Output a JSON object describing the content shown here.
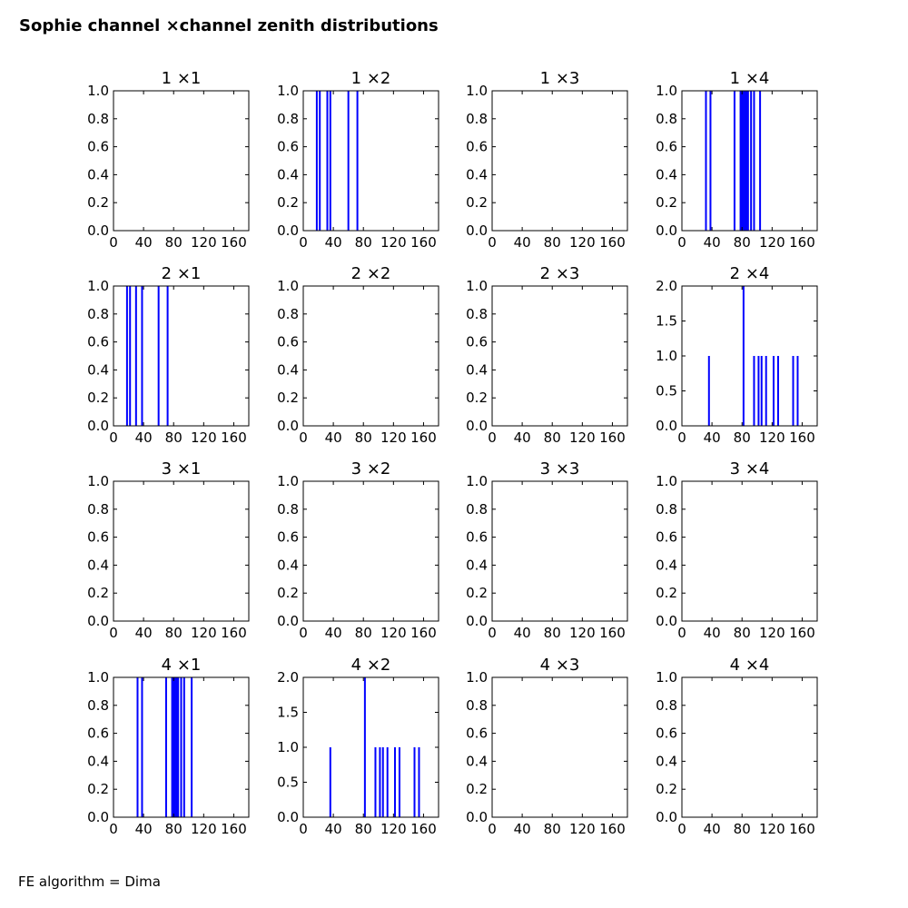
{
  "figure": {
    "title": "Sophie channel ×channel zenith distributions",
    "footer": "FE algorithm = Dima"
  },
  "chart_data": [
    {
      "type": "bar",
      "title": "1 ×1",
      "xlim": [
        0,
        180
      ],
      "ylim": [
        0,
        1
      ],
      "xticks": [
        0,
        40,
        80,
        120,
        160
      ],
      "yticks": [
        "0.0",
        "0.2",
        "0.4",
        "0.6",
        "0.8",
        "1.0"
      ],
      "x": [],
      "values": []
    },
    {
      "type": "bar",
      "title": "1 ×2",
      "xlim": [
        0,
        180
      ],
      "ylim": [
        0,
        1
      ],
      "xticks": [
        0,
        40,
        80,
        120,
        160
      ],
      "yticks": [
        "0.0",
        "0.2",
        "0.4",
        "0.6",
        "0.8",
        "1.0"
      ],
      "x": [
        18,
        22,
        32,
        36,
        60,
        72
      ],
      "values": [
        1,
        1,
        1,
        1,
        1,
        1
      ]
    },
    {
      "type": "bar",
      "title": "1 ×3",
      "xlim": [
        0,
        180
      ],
      "ylim": [
        0,
        1
      ],
      "xticks": [
        0,
        40,
        80,
        120,
        160
      ],
      "yticks": [
        "0.0",
        "0.2",
        "0.4",
        "0.6",
        "0.8",
        "1.0"
      ],
      "x": [],
      "values": []
    },
    {
      "type": "bar",
      "title": "1 ×4",
      "xlim": [
        0,
        180
      ],
      "ylim": [
        0,
        1
      ],
      "xticks": [
        0,
        40,
        80,
        120,
        160
      ],
      "yticks": [
        "0.0",
        "0.2",
        "0.4",
        "0.6",
        "0.8",
        "1.0"
      ],
      "x": [
        32,
        38,
        70,
        78,
        80,
        82,
        84,
        86,
        88,
        92,
        96,
        104
      ],
      "values": [
        1,
        1,
        1,
        1,
        1,
        1,
        1,
        1,
        1,
        1,
        1,
        1
      ]
    },
    {
      "type": "bar",
      "title": "2 ×1",
      "xlim": [
        0,
        180
      ],
      "ylim": [
        0,
        1
      ],
      "xticks": [
        0,
        40,
        80,
        120,
        160
      ],
      "yticks": [
        "0.0",
        "0.2",
        "0.4",
        "0.6",
        "0.8",
        "1.0"
      ],
      "x": [
        18,
        22,
        30,
        38,
        60,
        72
      ],
      "values": [
        1,
        1,
        1,
        1,
        1,
        1
      ]
    },
    {
      "type": "bar",
      "title": "2 ×2",
      "xlim": [
        0,
        180
      ],
      "ylim": [
        0,
        1
      ],
      "xticks": [
        0,
        40,
        80,
        120,
        160
      ],
      "yticks": [
        "0.0",
        "0.2",
        "0.4",
        "0.6",
        "0.8",
        "1.0"
      ],
      "x": [],
      "values": []
    },
    {
      "type": "bar",
      "title": "2 ×3",
      "xlim": [
        0,
        180
      ],
      "ylim": [
        0,
        1
      ],
      "xticks": [
        0,
        40,
        80,
        120,
        160
      ],
      "yticks": [
        "0.0",
        "0.2",
        "0.4",
        "0.6",
        "0.8",
        "1.0"
      ],
      "x": [],
      "values": []
    },
    {
      "type": "bar",
      "title": "2 ×4",
      "xlim": [
        0,
        180
      ],
      "ylim": [
        0,
        2
      ],
      "xticks": [
        0,
        40,
        80,
        120,
        160
      ],
      "yticks": [
        "0.0",
        "0.5",
        "1.0",
        "1.5",
        "2.0"
      ],
      "x": [
        36,
        82,
        96,
        102,
        106,
        112,
        122,
        128,
        148,
        154
      ],
      "values": [
        1,
        2,
        1,
        1,
        1,
        1,
        1,
        1,
        1,
        1
      ]
    },
    {
      "type": "bar",
      "title": "3 ×1",
      "xlim": [
        0,
        180
      ],
      "ylim": [
        0,
        1
      ],
      "xticks": [
        0,
        40,
        80,
        120,
        160
      ],
      "yticks": [
        "0.0",
        "0.2",
        "0.4",
        "0.6",
        "0.8",
        "1.0"
      ],
      "x": [],
      "values": []
    },
    {
      "type": "bar",
      "title": "3 ×2",
      "xlim": [
        0,
        180
      ],
      "ylim": [
        0,
        1
      ],
      "xticks": [
        0,
        40,
        80,
        120,
        160
      ],
      "yticks": [
        "0.0",
        "0.2",
        "0.4",
        "0.6",
        "0.8",
        "1.0"
      ],
      "x": [],
      "values": []
    },
    {
      "type": "bar",
      "title": "3 ×3",
      "xlim": [
        0,
        180
      ],
      "ylim": [
        0,
        1
      ],
      "xticks": [
        0,
        40,
        80,
        120,
        160
      ],
      "yticks": [
        "0.0",
        "0.2",
        "0.4",
        "0.6",
        "0.8",
        "1.0"
      ],
      "x": [],
      "values": []
    },
    {
      "type": "bar",
      "title": "3 ×4",
      "xlim": [
        0,
        180
      ],
      "ylim": [
        0,
        1
      ],
      "xticks": [
        0,
        40,
        80,
        120,
        160
      ],
      "yticks": [
        "0.0",
        "0.2",
        "0.4",
        "0.6",
        "0.8",
        "1.0"
      ],
      "x": [],
      "values": []
    },
    {
      "type": "bar",
      "title": "4 ×1",
      "xlim": [
        0,
        180
      ],
      "ylim": [
        0,
        1
      ],
      "xticks": [
        0,
        40,
        80,
        120,
        160
      ],
      "yticks": [
        "0.0",
        "0.2",
        "0.4",
        "0.6",
        "0.8",
        "1.0"
      ],
      "x": [
        32,
        38,
        70,
        78,
        80,
        82,
        84,
        86,
        90,
        94,
        104
      ],
      "values": [
        1,
        1,
        1,
        1,
        1,
        1,
        1,
        1,
        1,
        1,
        1
      ]
    },
    {
      "type": "bar",
      "title": "4 ×2",
      "xlim": [
        0,
        180
      ],
      "ylim": [
        0,
        2
      ],
      "xticks": [
        0,
        40,
        80,
        120,
        160
      ],
      "yticks": [
        "0.0",
        "0.5",
        "1.0",
        "1.5",
        "2.0"
      ],
      "x": [
        36,
        82,
        96,
        102,
        106,
        112,
        122,
        128,
        148,
        154
      ],
      "values": [
        1,
        2,
        1,
        1,
        1,
        1,
        1,
        1,
        1,
        1
      ]
    },
    {
      "type": "bar",
      "title": "4 ×3",
      "xlim": [
        0,
        180
      ],
      "ylim": [
        0,
        1
      ],
      "xticks": [
        0,
        40,
        80,
        120,
        160
      ],
      "yticks": [
        "0.0",
        "0.2",
        "0.4",
        "0.6",
        "0.8",
        "1.0"
      ],
      "x": [],
      "values": []
    },
    {
      "type": "bar",
      "title": "4 ×4",
      "xlim": [
        0,
        180
      ],
      "ylim": [
        0,
        1
      ],
      "xticks": [
        0,
        40,
        80,
        120,
        160
      ],
      "yticks": [
        "0.0",
        "0.2",
        "0.4",
        "0.6",
        "0.8",
        "1.0"
      ],
      "x": [],
      "values": []
    }
  ],
  "colors": {
    "bar": "#0000ff",
    "axis": "#000000"
  }
}
